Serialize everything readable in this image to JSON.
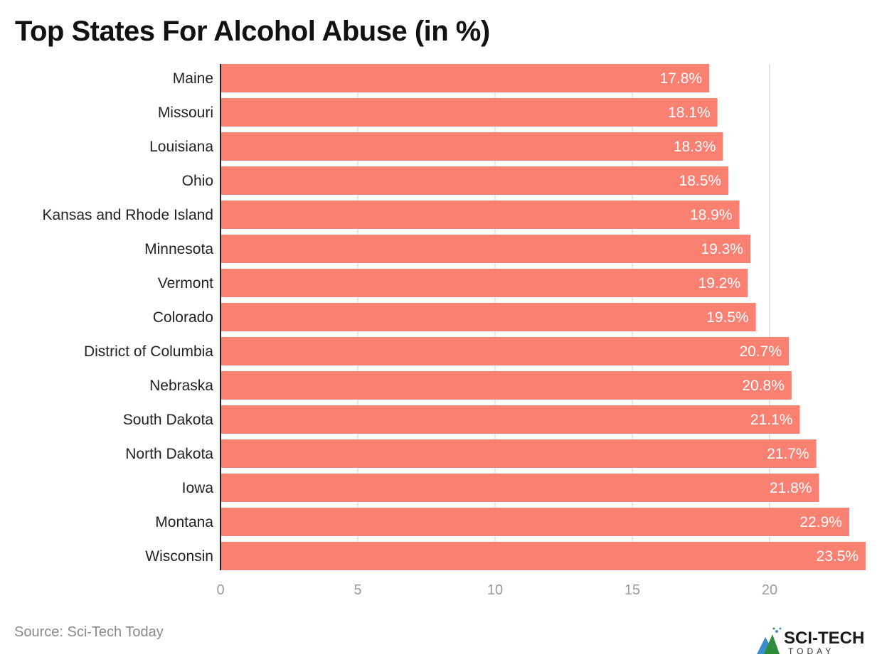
{
  "title": "Top States For Alcohol Abuse (in %)",
  "source": "Source: Sci-Tech Today",
  "logo": {
    "text": "SCI-TECH",
    "subtext": "TODAY"
  },
  "colors": {
    "bar": "#FA8072",
    "grid": "#e8e4e6",
    "axis": "#222222",
    "tick_label": "#9a9a9a",
    "label": "#222222"
  },
  "chart_data": {
    "type": "bar",
    "orientation": "horizontal",
    "title": "Top States For Alcohol Abuse (in %)",
    "categories": [
      "Maine",
      "Missouri",
      "Louisiana",
      "Ohio",
      "Kansas and Rhode Island",
      "Minnesota",
      "Vermont",
      "Colorado",
      "District of Columbia",
      "Nebraska",
      "South Dakota",
      "North Dakota",
      "Iowa",
      "Montana",
      "Wisconsin"
    ],
    "values": [
      17.8,
      18.1,
      18.3,
      18.5,
      18.9,
      19.3,
      19.2,
      19.5,
      20.7,
      20.8,
      21.1,
      21.7,
      21.8,
      22.9,
      23.5
    ],
    "data_labels": [
      "17.8%",
      "18.1%",
      "18.3%",
      "18.5%",
      "18.9%",
      "19.3%",
      "19.2%",
      "19.5%",
      "20.7%",
      "20.8%",
      "21.1%",
      "21.7%",
      "21.8%",
      "22.9%",
      "23.5%"
    ],
    "xlim": [
      0,
      23.5
    ],
    "xticks": [
      0,
      5,
      10,
      15,
      20
    ],
    "xlabel": "",
    "ylabel": "",
    "grid": true,
    "legend": "none"
  }
}
